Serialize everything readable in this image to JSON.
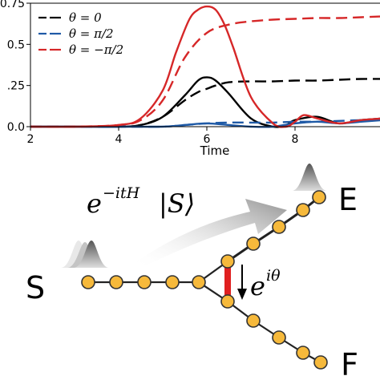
{
  "chart_data": {
    "type": "line",
    "xlabel": "Time",
    "ylabel": "",
    "xlim": [
      2,
      10
    ],
    "ylim": [
      0,
      0.75
    ],
    "xticks": [
      2,
      4,
      6,
      8
    ],
    "yticks": [
      0.0,
      0.25,
      0.5,
      0.75
    ],
    "ytick_labels": [
      "0.0",
      ".25",
      "0.5",
      "0.75"
    ],
    "grid": false,
    "legend_position": "top-left",
    "legend": [
      {
        "label": "θ = 0",
        "color": "#000000"
      },
      {
        "label": "θ = π/2",
        "color": "#1f5aa6"
      },
      {
        "label": "θ = −π/2",
        "color": "#d62728"
      }
    ],
    "series": [
      {
        "name": "θ = 0",
        "style": "solid",
        "color": "#000000",
        "x": [
          2,
          3,
          4,
          4.5,
          5,
          5.5,
          5.8,
          6.0,
          6.2,
          6.5,
          7.0,
          7.5,
          7.8,
          8.0,
          8.5,
          9.0,
          9.5,
          10.0
        ],
        "y": [
          0,
          0,
          0,
          0.01,
          0.06,
          0.19,
          0.28,
          0.3,
          0.28,
          0.2,
          0.05,
          0.0,
          0.01,
          0.04,
          0.06,
          0.02,
          0.04,
          0.05
        ]
      },
      {
        "name": "θ = 0",
        "style": "dashed",
        "color": "#000000",
        "x": [
          2,
          3,
          4,
          4.5,
          5,
          5.5,
          5.8,
          6.0,
          6.2,
          6.5,
          7.0,
          7.5,
          8.0,
          8.5,
          9.0,
          9.5,
          10.0
        ],
        "y": [
          0,
          0,
          0,
          0.01,
          0.06,
          0.16,
          0.21,
          0.23,
          0.25,
          0.27,
          0.275,
          0.275,
          0.28,
          0.28,
          0.285,
          0.29,
          0.29
        ]
      },
      {
        "name": "θ = π/2",
        "style": "solid",
        "color": "#1f5aa6",
        "x": [
          2,
          4,
          5,
          5.5,
          6.0,
          6.5,
          7.0,
          7.5,
          8.0,
          8.5,
          9.0,
          9.5,
          10.0
        ],
        "y": [
          0,
          0,
          0.0,
          0.01,
          0.02,
          0.01,
          0.0,
          0.0,
          0.02,
          0.03,
          0.02,
          0.03,
          0.04
        ]
      },
      {
        "name": "θ = π/2",
        "style": "dashed",
        "color": "#1f5aa6",
        "x": [
          2,
          4,
          5,
          5.5,
          6.0,
          6.5,
          7.0,
          7.5,
          8.0,
          8.5,
          9.0,
          9.5,
          10.0
        ],
        "y": [
          0,
          0,
          0.0,
          0.01,
          0.02,
          0.025,
          0.025,
          0.025,
          0.03,
          0.03,
          0.035,
          0.04,
          0.04
        ]
      },
      {
        "name": "θ = −π/2",
        "style": "solid",
        "color": "#d62728",
        "x": [
          2,
          3,
          4,
          4.5,
          5,
          5.3,
          5.6,
          5.8,
          6.0,
          6.2,
          6.4,
          6.6,
          7.0,
          7.5,
          7.8,
          8.0,
          8.2,
          8.5,
          9.0,
          9.5,
          10.0
        ],
        "y": [
          0,
          0,
          0.01,
          0.05,
          0.22,
          0.45,
          0.65,
          0.71,
          0.73,
          0.71,
          0.62,
          0.48,
          0.18,
          0.02,
          0.0,
          0.03,
          0.07,
          0.05,
          0.02,
          0.04,
          0.05
        ]
      },
      {
        "name": "θ = −π/2",
        "style": "dashed",
        "color": "#d62728",
        "x": [
          2,
          3,
          4,
          4.5,
          5,
          5.5,
          6.0,
          6.5,
          7.0,
          7.5,
          8.0,
          8.5,
          9.0,
          9.5,
          10.0
        ],
        "y": [
          0,
          0,
          0.01,
          0.04,
          0.16,
          0.42,
          0.57,
          0.62,
          0.64,
          0.65,
          0.655,
          0.66,
          0.66,
          0.665,
          0.67
        ]
      }
    ]
  },
  "diagram": {
    "operator_base": "e",
    "operator_exponent": "−itH",
    "ket": "|S⟩",
    "phase_base": "e",
    "phase_exponent": "iθ",
    "node_labels": {
      "source": "S",
      "end_upper": "E",
      "end_lower": "F"
    },
    "colors": {
      "node_fill": "#f6b93b",
      "node_stroke": "#333333",
      "bond": "#222222",
      "phase_bond": "#e02020"
    }
  }
}
